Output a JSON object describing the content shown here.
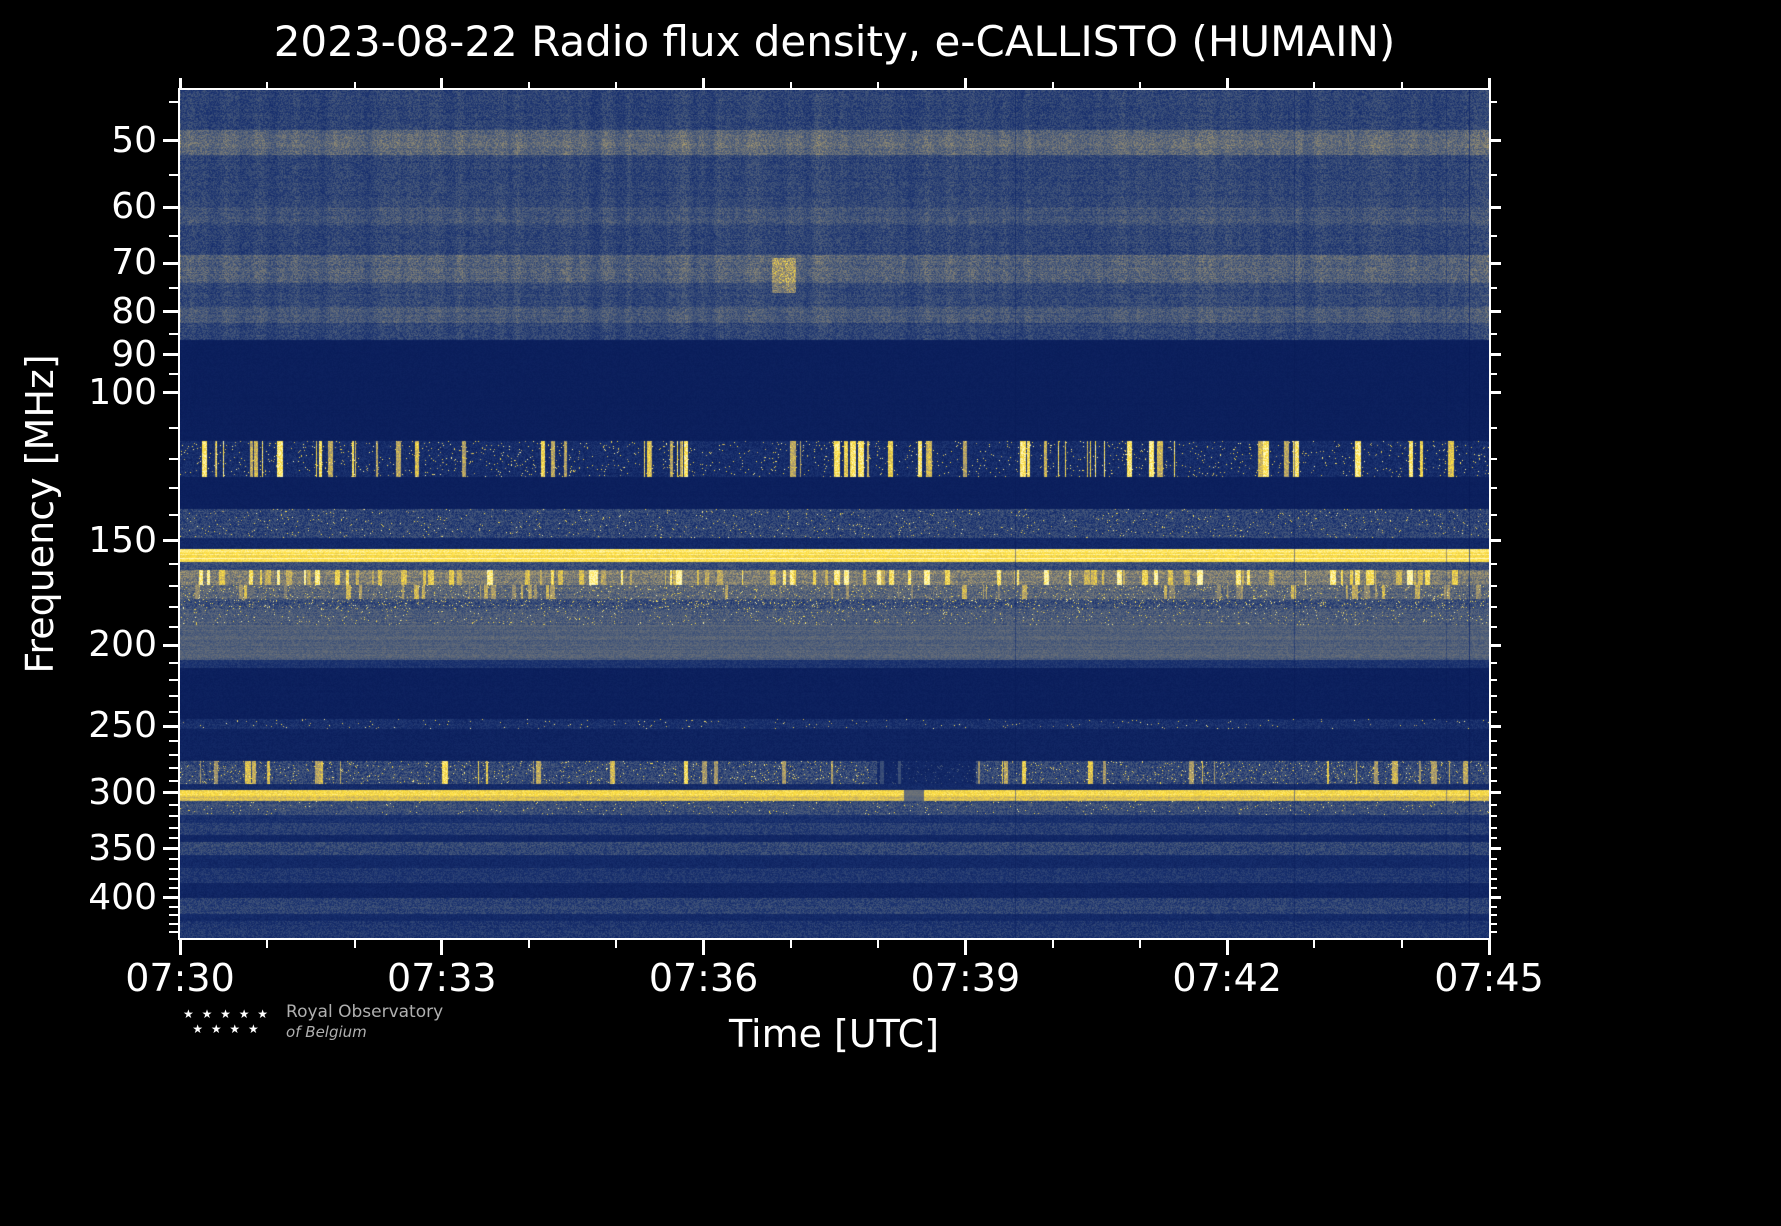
{
  "title": "2023-08-22 Radio flux density, e-CALLISTO (HUMAIN)",
  "x_axis_label": "Time [UTC]",
  "y_axis_label": "Frequency [MHz]",
  "logo": {
    "stars_row1": "★ ★ ★ ★ ★",
    "stars_row2": "★ ★ ★ ★",
    "line1": "Royal Observatory",
    "line2": "of Belgium"
  },
  "chart_data": {
    "type": "heatmap",
    "title": "2023-08-22 Radio flux density, e-CALLISTO (HUMAIN)",
    "date": "2023-08-22",
    "network": "e-CALLISTO",
    "station": "HUMAIN",
    "xlabel": "Time [UTC]",
    "ylabel": "Frequency [MHz]",
    "time_start_utc": "07:30",
    "time_end_utc": "07:45",
    "x_range_minutes": [
      0,
      15
    ],
    "x_ticks": [
      "07:30",
      "07:33",
      "07:36",
      "07:39",
      "07:42",
      "07:45"
    ],
    "x_tick_minutes": [
      0,
      3,
      6,
      9,
      12,
      15
    ],
    "x_minor_tick_minutes": [
      1,
      2,
      4,
      5,
      7,
      8,
      10,
      11,
      13,
      14
    ],
    "y_scale": "log",
    "y_axis_inverted": true,
    "freq_range_mhz": [
      43.5,
      447
    ],
    "y_ticks": [
      50,
      60,
      70,
      80,
      90,
      100,
      150,
      200,
      250,
      300,
      350,
      400
    ],
    "y_minor_ticks": [
      45,
      55,
      65,
      75,
      85,
      95,
      110,
      120,
      130,
      140,
      160,
      170,
      180,
      190,
      210,
      220,
      230,
      240,
      260,
      270,
      280,
      290,
      310,
      320,
      330,
      340,
      360,
      370,
      380,
      390,
      410,
      420,
      430,
      440
    ],
    "grid": false,
    "legend": "none",
    "colormap_stops": [
      {
        "t": 0.0,
        "color": "#061855"
      },
      {
        "t": 0.18,
        "color": "#1a3270"
      },
      {
        "t": 0.35,
        "color": "#46587a"
      },
      {
        "t": 0.55,
        "color": "#7d7d76"
      },
      {
        "t": 0.72,
        "color": "#b9a569"
      },
      {
        "t": 0.88,
        "color": "#ffdf3e"
      },
      {
        "t": 1.0,
        "color": "#fffabe"
      }
    ],
    "persistent_rfi_lines_mhz": [
      50,
      61.5,
      70.5,
      80.5,
      156,
      166,
      302
    ],
    "bands": [
      {
        "f0": 43.5,
        "f1": 48.5,
        "base": 0.26,
        "noise": 0.1,
        "colmod": true
      },
      {
        "f0": 48.5,
        "f1": 52.0,
        "base": 0.44,
        "noise": 0.13,
        "colmod": true
      },
      {
        "f0": 52.0,
        "f1": 60.0,
        "base": 0.27,
        "noise": 0.1,
        "colmod": true
      },
      {
        "f0": 60.0,
        "f1": 63.0,
        "base": 0.34,
        "noise": 0.11,
        "colmod": true
      },
      {
        "f0": 63.0,
        "f1": 68.5,
        "base": 0.27,
        "noise": 0.1,
        "colmod": true
      },
      {
        "f0": 68.5,
        "f1": 74.0,
        "base": 0.41,
        "noise": 0.13,
        "colmod": true
      },
      {
        "f0": 74.0,
        "f1": 79.0,
        "base": 0.28,
        "noise": 0.1,
        "colmod": true
      },
      {
        "f0": 79.0,
        "f1": 82.5,
        "base": 0.36,
        "noise": 0.11,
        "colmod": true
      },
      {
        "f0": 82.5,
        "f1": 86.5,
        "base": 0.27,
        "noise": 0.1,
        "colmod": true
      },
      {
        "f0": 86.5,
        "f1": 114.0,
        "base": 0.055,
        "noise": 0.02
      },
      {
        "f0": 114.0,
        "f1": 126.0,
        "base": 0.14,
        "noise": 0.08,
        "streak_prob": 0.05,
        "streak_amp": 0.9,
        "spot_prob": 0.03
      },
      {
        "f0": 126.0,
        "f1": 137.5,
        "base": 0.06,
        "noise": 0.02
      },
      {
        "f0": 137.5,
        "f1": 149.0,
        "base": 0.26,
        "noise": 0.12,
        "spot_prob": 0.02
      },
      {
        "f0": 149.0,
        "f1": 153.5,
        "base": 0.12,
        "noise": 0.05
      },
      {
        "f0": 153.5,
        "f1": 159.0,
        "base": 0.93,
        "noise": 0.05
      },
      {
        "f0": 159.0,
        "f1": 162.5,
        "base": 0.3,
        "noise": 0.1
      },
      {
        "f0": 162.5,
        "f1": 169.5,
        "base": 0.55,
        "noise": 0.15,
        "streak_prob": 0.09,
        "streak_amp": 0.95
      },
      {
        "f0": 169.5,
        "f1": 176.0,
        "base": 0.42,
        "noise": 0.13,
        "streak_prob": 0.03,
        "streak_amp": 0.75,
        "spot_prob": 0.04
      },
      {
        "f0": 176.0,
        "f1": 181.0,
        "base": 0.3,
        "noise": 0.12,
        "spot_prob": 0.05
      },
      {
        "f0": 181.0,
        "f1": 189.0,
        "base": 0.38,
        "noise": 0.1,
        "spot_prob": 0.03
      },
      {
        "f0": 189.0,
        "f1": 208.0,
        "base": 0.4,
        "noise": 0.07
      },
      {
        "f0": 208.0,
        "f1": 213.0,
        "base": 0.18,
        "noise": 0.06
      },
      {
        "f0": 213.0,
        "f1": 245.0,
        "base": 0.06,
        "noise": 0.025
      },
      {
        "f0": 245.0,
        "f1": 252.0,
        "base": 0.16,
        "noise": 0.08,
        "spot_prob": 0.012
      },
      {
        "f0": 252.0,
        "f1": 275.0,
        "base": 0.085,
        "noise": 0.035
      },
      {
        "f0": 275.0,
        "f1": 293.0,
        "base": 0.28,
        "noise": 0.13,
        "streak_prob": 0.03,
        "streak_amp": 0.85,
        "spot_prob": 0.04,
        "gap": [
          0.532,
          0.608,
          0.4
        ]
      },
      {
        "f0": 293.0,
        "f1": 297.5,
        "base": 0.13,
        "noise": 0.05
      },
      {
        "f0": 297.5,
        "f1": 307.0,
        "base": 0.84,
        "noise": 0.06,
        "gap": [
          0.553,
          0.568,
          0.55
        ]
      },
      {
        "f0": 307.0,
        "f1": 319.0,
        "base": 0.3,
        "noise": 0.11,
        "spot_prob": 0.015
      },
      {
        "f0": 319.0,
        "f1": 326.0,
        "base": 0.17,
        "noise": 0.06
      },
      {
        "f0": 326.0,
        "f1": 337.0,
        "base": 0.23,
        "noise": 0.09
      },
      {
        "f0": 337.0,
        "f1": 343.0,
        "base": 0.11,
        "noise": 0.04
      },
      {
        "f0": 343.0,
        "f1": 356.0,
        "base": 0.27,
        "noise": 0.11
      },
      {
        "f0": 356.0,
        "f1": 369.0,
        "base": 0.13,
        "noise": 0.05
      },
      {
        "f0": 369.0,
        "f1": 384.0,
        "base": 0.2,
        "noise": 0.08
      },
      {
        "f0": 384.0,
        "f1": 401.0,
        "base": 0.1,
        "noise": 0.04
      },
      {
        "f0": 401.0,
        "f1": 419.0,
        "base": 0.26,
        "noise": 0.1
      },
      {
        "f0": 419.0,
        "f1": 427.0,
        "base": 0.13,
        "noise": 0.05
      },
      {
        "f0": 427.0,
        "f1": 447.0,
        "base": 0.2,
        "noise": 0.09
      }
    ],
    "features": [
      {
        "type": "bright_patch",
        "t0": 0.452,
        "t1": 0.47,
        "f0": 69,
        "f1": 76,
        "boost": 0.28,
        "note": "short brightening near 07:36.8 around 70 MHz"
      }
    ]
  }
}
